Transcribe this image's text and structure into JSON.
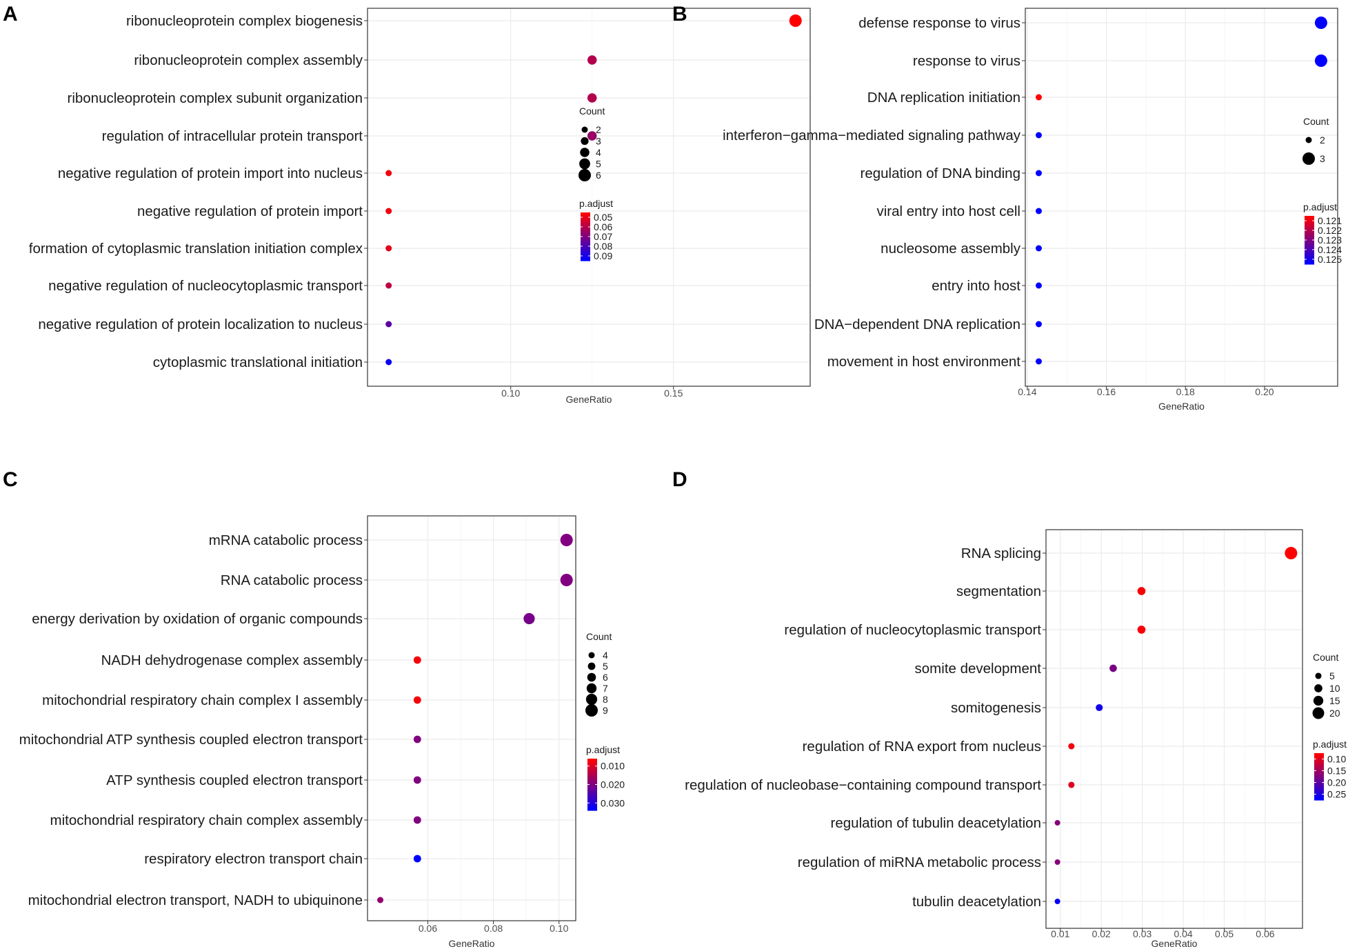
{
  "figure": {
    "color_high_significance": "#ff0000",
    "color_low_significance": "#0000ff"
  },
  "chart_data": [
    {
      "panel": "A",
      "type": "scatter",
      "xlabel": "GeneRatio",
      "xlim": [
        0.056,
        0.192
      ],
      "xticks": [
        0.1,
        0.15
      ],
      "xtick_labels": [
        "0.10",
        "0.15"
      ],
      "size_legend_title": "Count",
      "size_legend": [
        2,
        3,
        4,
        5,
        6
      ],
      "size_range": [
        2,
        6
      ],
      "color_legend_title": "p.adjust",
      "color_legend": [
        "0.05",
        "0.06",
        "0.07",
        "0.08",
        "0.09"
      ],
      "color_range": [
        0.045,
        0.095
      ],
      "points": [
        {
          "term": "ribonucleoprotein complex biogenesis",
          "gene_ratio": 0.1875,
          "count": 6,
          "p_adjust": 0.045
        },
        {
          "term": "ribonucleoprotein complex assembly",
          "gene_ratio": 0.125,
          "count": 4,
          "p_adjust": 0.06
        },
        {
          "term": "ribonucleoprotein complex subunit organization",
          "gene_ratio": 0.125,
          "count": 4,
          "p_adjust": 0.06
        },
        {
          "term": "regulation of intracellular protein transport",
          "gene_ratio": 0.125,
          "count": 4,
          "p_adjust": 0.065
        },
        {
          "term": "negative regulation of protein import into nucleus",
          "gene_ratio": 0.0625,
          "count": 2,
          "p_adjust": 0.048
        },
        {
          "term": "negative regulation of protein import",
          "gene_ratio": 0.0625,
          "count": 2,
          "p_adjust": 0.048
        },
        {
          "term": "formation of cytoplasmic translation initiation complex",
          "gene_ratio": 0.0625,
          "count": 2,
          "p_adjust": 0.05
        },
        {
          "term": "negative regulation of nucleocytoplasmic transport",
          "gene_ratio": 0.0625,
          "count": 2,
          "p_adjust": 0.058
        },
        {
          "term": "negative regulation of protein localization to nucleus",
          "gene_ratio": 0.0625,
          "count": 2,
          "p_adjust": 0.077
        },
        {
          "term": "cytoplasmic translational initiation",
          "gene_ratio": 0.0625,
          "count": 2,
          "p_adjust": 0.093
        }
      ]
    },
    {
      "panel": "B",
      "type": "scatter",
      "xlabel": "GeneRatio",
      "xlim": [
        0.1395,
        0.2185
      ],
      "xticks": [
        0.14,
        0.16,
        0.18,
        0.2
      ],
      "xtick_labels": [
        "0.14",
        "0.16",
        "0.18",
        "0.20"
      ],
      "size_legend_title": "Count",
      "size_legend": [
        2,
        3
      ],
      "size_range": [
        2,
        3
      ],
      "color_legend_title": "p.adjust",
      "color_legend": [
        "0.121",
        "0.122",
        "0.123",
        "0.124",
        "0.125"
      ],
      "color_range": [
        0.1205,
        0.1255
      ],
      "points": [
        {
          "term": "defense response to virus",
          "gene_ratio": 0.2143,
          "count": 3,
          "p_adjust": 0.1255
        },
        {
          "term": "response to virus",
          "gene_ratio": 0.2143,
          "count": 3,
          "p_adjust": 0.1255
        },
        {
          "term": "DNA replication initiation",
          "gene_ratio": 0.1429,
          "count": 2,
          "p_adjust": 0.1205
        },
        {
          "term": "interferon−gamma−mediated signaling pathway",
          "gene_ratio": 0.1429,
          "count": 2,
          "p_adjust": 0.1255
        },
        {
          "term": "regulation of DNA binding",
          "gene_ratio": 0.1429,
          "count": 2,
          "p_adjust": 0.1255
        },
        {
          "term": "viral entry into host cell",
          "gene_ratio": 0.1429,
          "count": 2,
          "p_adjust": 0.1255
        },
        {
          "term": "nucleosome assembly",
          "gene_ratio": 0.1429,
          "count": 2,
          "p_adjust": 0.1255
        },
        {
          "term": "entry into host",
          "gene_ratio": 0.1429,
          "count": 2,
          "p_adjust": 0.1255
        },
        {
          "term": "DNA−dependent DNA replication",
          "gene_ratio": 0.1429,
          "count": 2,
          "p_adjust": 0.1255
        },
        {
          "term": "movement in host environment",
          "gene_ratio": 0.1429,
          "count": 2,
          "p_adjust": 0.1255
        }
      ]
    },
    {
      "panel": "C",
      "type": "scatter",
      "xlabel": "GeneRatio",
      "xlim": [
        0.0416,
        0.1051
      ],
      "xticks": [
        0.06,
        0.08,
        0.1
      ],
      "xtick_labels": [
        "0.06",
        "0.08",
        "0.10"
      ],
      "size_legend_title": "Count",
      "size_legend": [
        4,
        5,
        6,
        7,
        8,
        9
      ],
      "size_range": [
        4,
        9
      ],
      "color_legend_title": "p.adjust",
      "color_legend": [
        "0.010",
        "0.020",
        "0.030"
      ],
      "color_range": [
        0.006,
        0.034
      ],
      "points": [
        {
          "term": "mRNA catabolic process",
          "gene_ratio": 0.1023,
          "count": 9,
          "p_adjust": 0.02
        },
        {
          "term": "RNA catabolic process",
          "gene_ratio": 0.1023,
          "count": 9,
          "p_adjust": 0.02
        },
        {
          "term": "energy derivation by oxidation of organic compounds",
          "gene_ratio": 0.0909,
          "count": 8,
          "p_adjust": 0.021
        },
        {
          "term": "NADH dehydrogenase complex assembly",
          "gene_ratio": 0.0568,
          "count": 5,
          "p_adjust": 0.007
        },
        {
          "term": "mitochondrial respiratory chain complex I assembly",
          "gene_ratio": 0.0568,
          "count": 5,
          "p_adjust": 0.007
        },
        {
          "term": "mitochondrial ATP synthesis coupled electron transport",
          "gene_ratio": 0.0568,
          "count": 5,
          "p_adjust": 0.02
        },
        {
          "term": "ATP synthesis coupled electron transport",
          "gene_ratio": 0.0568,
          "count": 5,
          "p_adjust": 0.02
        },
        {
          "term": "mitochondrial respiratory chain complex assembly",
          "gene_ratio": 0.0568,
          "count": 5,
          "p_adjust": 0.02
        },
        {
          "term": "respiratory electron transport chain",
          "gene_ratio": 0.0568,
          "count": 5,
          "p_adjust": 0.034
        },
        {
          "term": "mitochondrial electron transport, NADH to ubiquinone",
          "gene_ratio": 0.0455,
          "count": 4,
          "p_adjust": 0.018
        }
      ]
    },
    {
      "panel": "D",
      "type": "scatter",
      "xlabel": "GeneRatio",
      "xlim": [
        0.0065,
        0.0691
      ],
      "xticks": [
        0.01,
        0.02,
        0.03,
        0.04,
        0.05,
        0.06
      ],
      "xtick_labels": [
        "0.01",
        "0.02",
        "0.03",
        "0.04",
        "0.05",
        "0.06"
      ],
      "size_legend_title": "Count",
      "size_legend": [
        5,
        10,
        15,
        20
      ],
      "size_range": [
        3,
        22
      ],
      "color_legend_title": "p.adjust",
      "color_legend": [
        "0.10",
        "0.15",
        "0.20",
        "0.25"
      ],
      "color_range": [
        0.075,
        0.275
      ],
      "points": [
        {
          "term": "RNA splicing",
          "gene_ratio": 0.0663,
          "count": 22,
          "p_adjust": 0.075
        },
        {
          "term": "segmentation",
          "gene_ratio": 0.0298,
          "count": 10,
          "p_adjust": 0.08
        },
        {
          "term": "regulation of nucleocytoplasmic transport",
          "gene_ratio": 0.0298,
          "count": 10,
          "p_adjust": 0.08
        },
        {
          "term": "somite development",
          "gene_ratio": 0.0229,
          "count": 8,
          "p_adjust": 0.18
        },
        {
          "term": "somitogenesis",
          "gene_ratio": 0.0195,
          "count": 7,
          "p_adjust": 0.26
        },
        {
          "term": "regulation of RNA export from nucleus",
          "gene_ratio": 0.0127,
          "count": 5,
          "p_adjust": 0.085
        },
        {
          "term": "regulation of nucleobase−containing compound transport",
          "gene_ratio": 0.0127,
          "count": 5,
          "p_adjust": 0.1
        },
        {
          "term": "regulation of tubulin deacetylation",
          "gene_ratio": 0.0093,
          "count": 3,
          "p_adjust": 0.17
        },
        {
          "term": "regulation of miRNA metabolic process",
          "gene_ratio": 0.0093,
          "count": 3,
          "p_adjust": 0.17
        },
        {
          "term": "tubulin deacetylation",
          "gene_ratio": 0.0093,
          "count": 3,
          "p_adjust": 0.27
        }
      ]
    }
  ]
}
